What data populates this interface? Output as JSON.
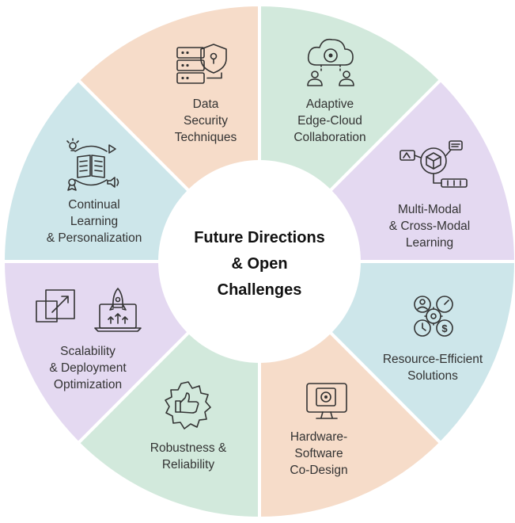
{
  "center_title": [
    "Future Directions",
    "& Open",
    "Challenges"
  ],
  "segments": [
    {
      "label": [
        "Data",
        "Security",
        "Techniques"
      ],
      "color": "#d2e9dc",
      "icon": "server-shield-icon"
    },
    {
      "label": [
        "Adaptive",
        "Edge-Cloud",
        "Collaboration"
      ],
      "color": "#e4d9f1",
      "icon": "cloud-network-icon"
    },
    {
      "label": [
        "Multi-Modal",
        "& Cross-Modal",
        "Learning"
      ],
      "color": "#cde6ea",
      "icon": "multimodal-cube-icon"
    },
    {
      "label": [
        "Resource-Efficient",
        "Solutions"
      ],
      "color": "#f6dcc9",
      "icon": "resource-gears-icon"
    },
    {
      "label": [
        "Hardware-",
        "Software",
        "Co-Design"
      ],
      "color": "#d2e9dc",
      "icon": "monitor-gear-icon"
    },
    {
      "label": [
        "Robustness &",
        "Reliability"
      ],
      "color": "#e4d9f1",
      "icon": "thumbs-up-gear-icon"
    },
    {
      "label": [
        "Scalability",
        "& Deployment",
        "Optimization"
      ],
      "color": "#cde6ea",
      "icon": "scale-rocket-icon"
    },
    {
      "label": [
        "Continual",
        "Learning",
        "& Personalization"
      ],
      "color": "#f6dcc9",
      "icon": "learning-book-icon"
    }
  ]
}
